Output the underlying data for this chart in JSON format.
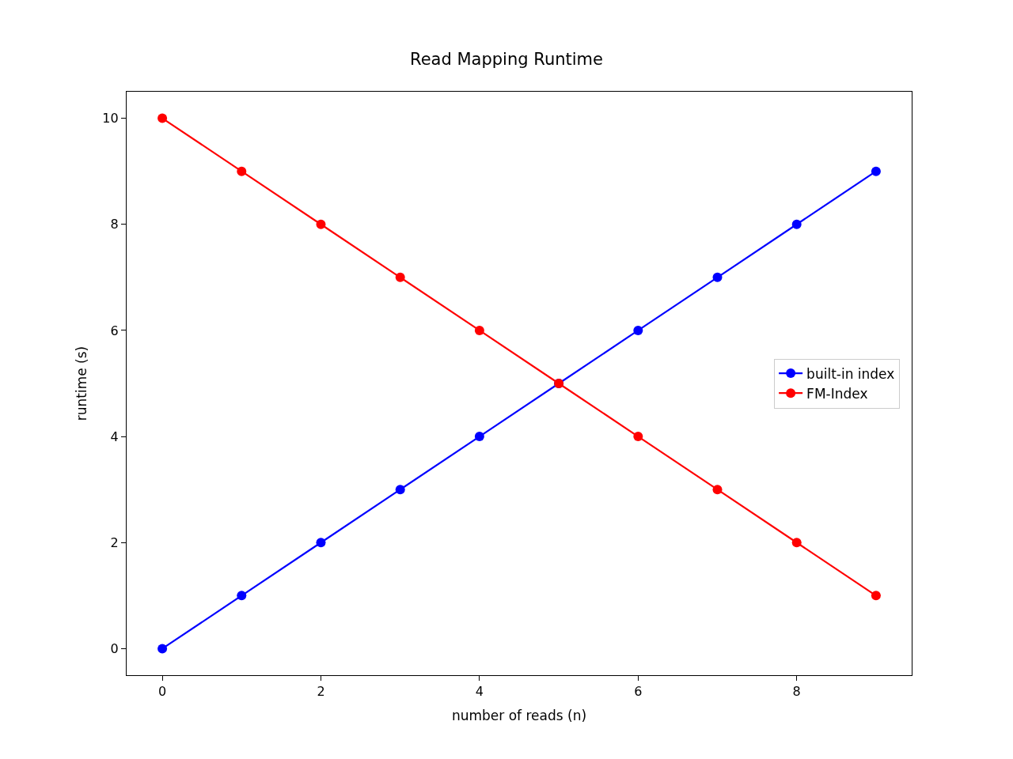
{
  "chart_data": {
    "type": "line",
    "title": "Read Mapping Runtime",
    "xlabel": "number of reads (n)",
    "ylabel": "runtime (s)",
    "x": [
      0,
      1,
      2,
      3,
      4,
      5,
      6,
      7,
      8,
      9
    ],
    "series": [
      {
        "name": "built-in index",
        "color": "#0000ff",
        "values": [
          0,
          1,
          2,
          3,
          4,
          5,
          6,
          7,
          8,
          9
        ]
      },
      {
        "name": "FM-Index",
        "color": "#ff0000",
        "values": [
          10,
          9,
          8,
          7,
          6,
          5,
          4,
          3,
          2,
          1
        ]
      }
    ],
    "xlim": [
      -0.45,
      9.45
    ],
    "ylim": [
      -0.5,
      10.5
    ],
    "xticks": [
      0,
      2,
      4,
      6,
      8
    ],
    "yticks": [
      0,
      2,
      4,
      6,
      8,
      10
    ],
    "grid": false,
    "legend": "right",
    "marker": "circle",
    "line_style": "solid"
  }
}
